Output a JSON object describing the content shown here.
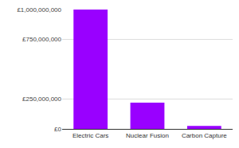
{
  "chart_data": {
    "type": "bar",
    "categories": [
      "Electric Cars",
      "Nuclear Fusion",
      "Carbon Capture"
    ],
    "values": [
      1000000000,
      220000000,
      25000000
    ],
    "color": "#9900ff",
    "ylim": [
      0,
      1000000000
    ],
    "yticks": [
      {
        "value": 0,
        "label": "£0"
      },
      {
        "value": 250000000,
        "label": "£250,000,000"
      },
      {
        "value": 750000000,
        "label": "£750,000,000"
      },
      {
        "value": 1000000000,
        "label": "£1,000,000,000"
      }
    ],
    "grid": true
  }
}
